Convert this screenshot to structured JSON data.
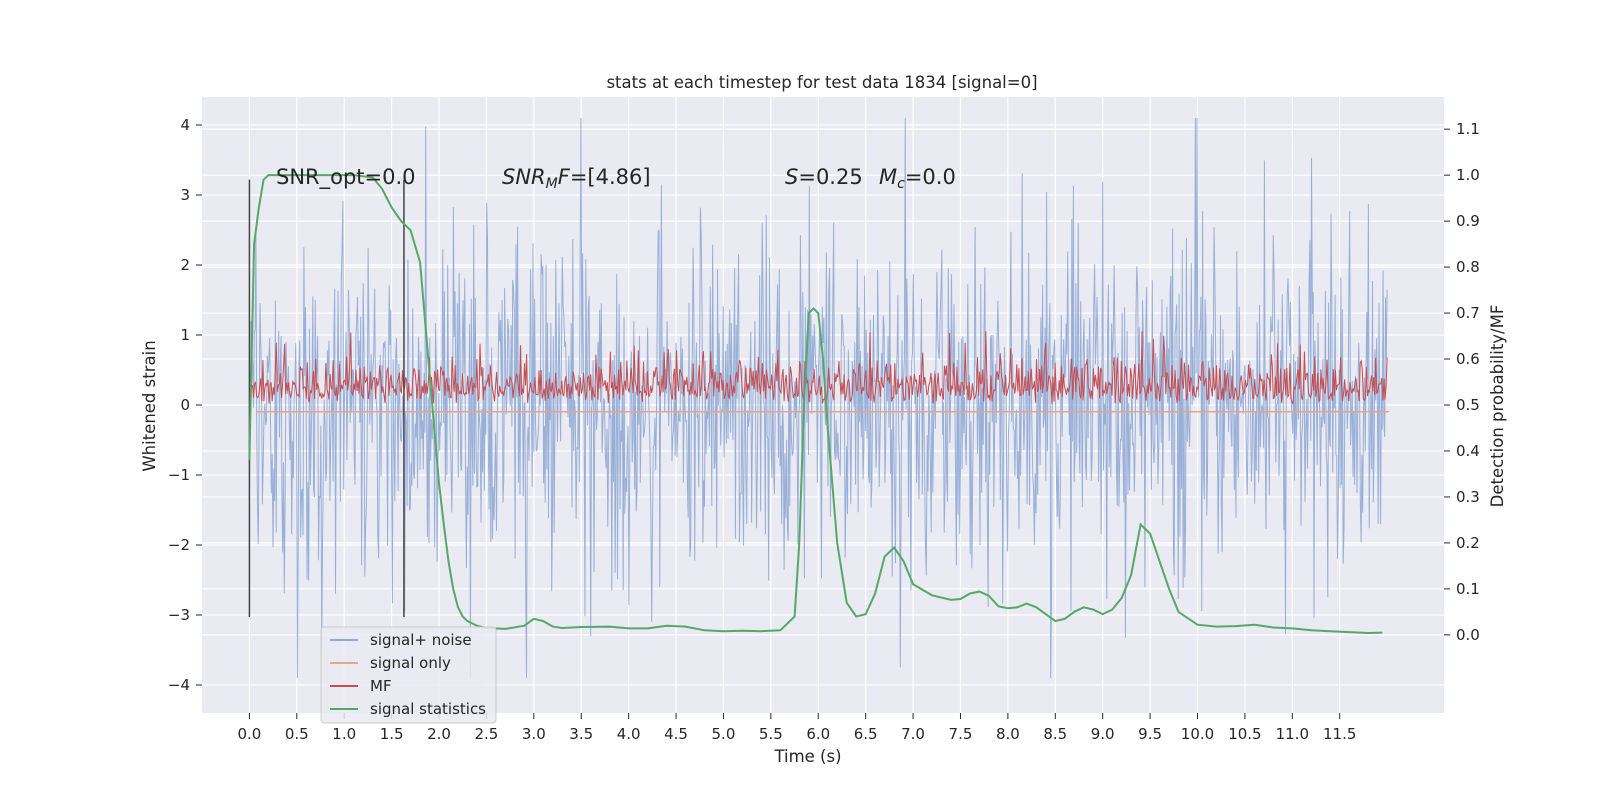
{
  "chart_data": {
    "type": "line",
    "title": "stats at each timestep for test data 1834 [signal=0]",
    "xlabel": "Time (s)",
    "ylabel_left": "Whitened strain",
    "ylabel_right": "Detection probability/MF",
    "xlim": [
      -0.5,
      12.6
    ],
    "ylim_left": [
      -4.4,
      4.4
    ],
    "ylim_right": [
      -0.17,
      1.17
    ],
    "x_ticks": [
      "0.0",
      "0.5",
      "1.0",
      "1.5",
      "2.0",
      "2.5",
      "3.0",
      "3.5",
      "4.0",
      "4.5",
      "5.0",
      "5.5",
      "6.0",
      "6.5",
      "7.0",
      "7.5",
      "8.0",
      "8.5",
      "9.0",
      "9.5",
      "10.0",
      "10.5",
      "11.0",
      "11.5"
    ],
    "y_ticks_left": [
      "4",
      "3",
      "2",
      "1",
      "0",
      "−1",
      "−2",
      "−3",
      "−4"
    ],
    "y_ticks_right": [
      "1.1",
      "1.0",
      "0.9",
      "0.8",
      "0.7",
      "0.6",
      "0.5",
      "0.4",
      "0.3",
      "0.2",
      "0.1",
      "0.0"
    ],
    "grid": true,
    "legend_position": "lower-left",
    "series": [
      {
        "name": "signal+ noise",
        "axis": "left",
        "color": "#8fa8d4",
        "description": "whitened strain noise, approx +/-1.4 typical, peaks to about 4.1 and -3.9",
        "x_range": [
          0.0,
          12.0
        ]
      },
      {
        "name": "signal only",
        "axis": "left",
        "color": "#e8a488",
        "values": "flat at 0"
      },
      {
        "name": "MF",
        "axis": "right",
        "color": "#c44e52",
        "description": "matched filter output, range approx 0.50 to 0.62, spike to 0.66 near t=2.5",
        "x_range": [
          0.0,
          12.0
        ]
      },
      {
        "name": "signal statistics",
        "axis": "right",
        "color": "#55a868",
        "x": [
          0.0,
          0.05,
          0.1,
          0.15,
          0.2,
          0.3,
          0.5,
          0.7,
          0.9,
          1.1,
          1.3,
          1.4,
          1.5,
          1.6,
          1.7,
          1.8,
          1.9,
          2.0,
          2.05,
          2.1,
          2.15,
          2.2,
          2.25,
          2.3,
          2.4,
          2.5,
          2.7,
          2.9,
          3.0,
          3.1,
          3.2,
          3.3,
          3.5,
          3.8,
          4.0,
          4.2,
          4.4,
          4.6,
          4.8,
          5.0,
          5.2,
          5.4,
          5.6,
          5.75,
          5.8,
          5.85,
          5.9,
          5.95,
          6.0,
          6.05,
          6.1,
          6.2,
          6.3,
          6.4,
          6.5,
          6.6,
          6.7,
          6.8,
          6.9,
          7.0,
          7.2,
          7.4,
          7.5,
          7.6,
          7.7,
          7.8,
          7.9,
          8.0,
          8.1,
          8.2,
          8.3,
          8.5,
          8.6,
          8.7,
          8.8,
          8.9,
          9.0,
          9.1,
          9.2,
          9.3,
          9.4,
          9.5,
          9.6,
          9.7,
          9.8,
          10.0,
          10.2,
          10.4,
          10.6,
          10.8,
          11.0,
          11.2,
          11.4,
          11.6,
          11.8,
          11.95
        ],
        "values": [
          0.38,
          0.85,
          0.93,
          0.99,
          1.0,
          1.0,
          1.0,
          1.0,
          1.0,
          1.0,
          0.995,
          0.97,
          0.93,
          0.9,
          0.88,
          0.81,
          0.57,
          0.33,
          0.24,
          0.16,
          0.1,
          0.06,
          0.04,
          0.03,
          0.02,
          0.015,
          0.013,
          0.02,
          0.035,
          0.03,
          0.018,
          0.015,
          0.017,
          0.018,
          0.014,
          0.014,
          0.02,
          0.018,
          0.01,
          0.008,
          0.009,
          0.008,
          0.01,
          0.04,
          0.2,
          0.5,
          0.7,
          0.71,
          0.7,
          0.6,
          0.45,
          0.2,
          0.07,
          0.04,
          0.045,
          0.09,
          0.17,
          0.19,
          0.16,
          0.11,
          0.086,
          0.076,
          0.078,
          0.09,
          0.094,
          0.085,
          0.062,
          0.058,
          0.06,
          0.068,
          0.06,
          0.03,
          0.035,
          0.05,
          0.06,
          0.055,
          0.045,
          0.055,
          0.08,
          0.13,
          0.24,
          0.22,
          0.16,
          0.1,
          0.05,
          0.022,
          0.018,
          0.019,
          0.022,
          0.016,
          0.014,
          0.01,
          0.008,
          0.006,
          0.004,
          0.005
        ]
      }
    ],
    "vertical_markers": [
      0.0,
      1.63
    ],
    "annotations": {
      "snr_opt": "SNR_opt=0.0",
      "snr_mf_base": "SNR",
      "snr_mf_sub": "M",
      "snr_mf_rest": "F",
      "snr_mf_value": "=[4.86]",
      "s_label": "S",
      "s_value": "=0.25",
      "mc_base": "M",
      "mc_sub": "c",
      "mc_value": "=0.0"
    }
  }
}
